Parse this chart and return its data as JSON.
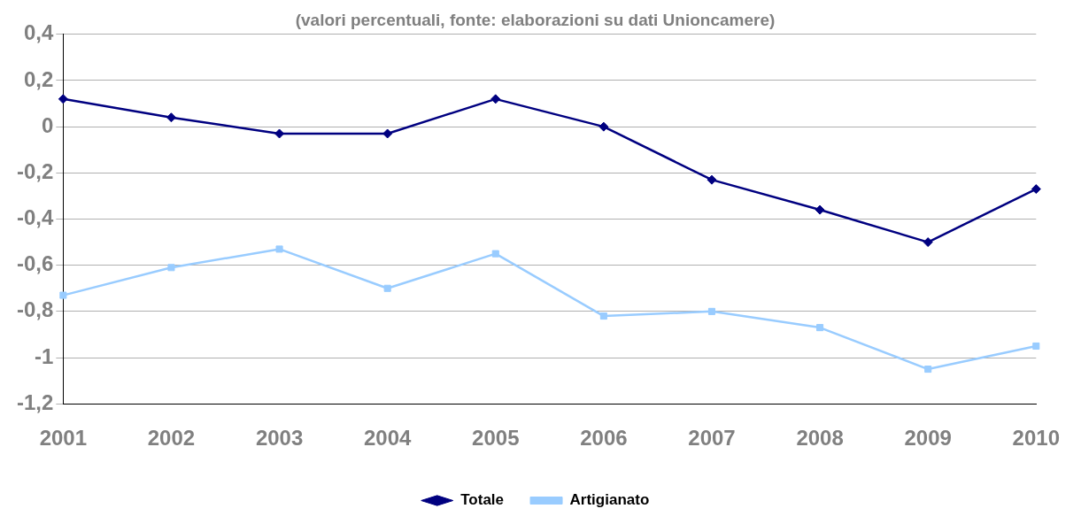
{
  "chart_data": {
    "type": "line",
    "title": "(valori percentuali, fonte: elaborazioni su dati Unioncamere)",
    "categories": [
      "2001",
      "2002",
      "2003",
      "2004",
      "2005",
      "2006",
      "2007",
      "2008",
      "2009",
      "2010"
    ],
    "series": [
      {
        "name": "Totale",
        "color": "#000080",
        "marker": "diamond",
        "values": [
          0.12,
          0.04,
          -0.03,
          -0.03,
          0.12,
          0.0,
          -0.23,
          -0.36,
          -0.5,
          -0.27
        ]
      },
      {
        "name": "Artigianato",
        "color": "#99ccff",
        "marker": "square",
        "values": [
          -0.73,
          -0.61,
          -0.53,
          -0.7,
          -0.55,
          -0.82,
          -0.8,
          -0.87,
          -1.05,
          -0.95
        ]
      }
    ],
    "ylim": [
      -1.2,
      0.4
    ],
    "yticks": [
      {
        "value": 0.4,
        "label": "0,4"
      },
      {
        "value": 0.2,
        "label": "0,2"
      },
      0,
      {
        "value": -0.2,
        "label": "-0,2"
      },
      {
        "value": -0.4,
        "label": "-0,4"
      },
      {
        "value": -0.6,
        "label": "-0,6"
      },
      {
        "value": -0.8,
        "label": "-0,8"
      },
      -1,
      {
        "value": -1.2,
        "label": "-1,2"
      }
    ],
    "grid": "y",
    "legend": "bottom",
    "line_style": "solid"
  }
}
